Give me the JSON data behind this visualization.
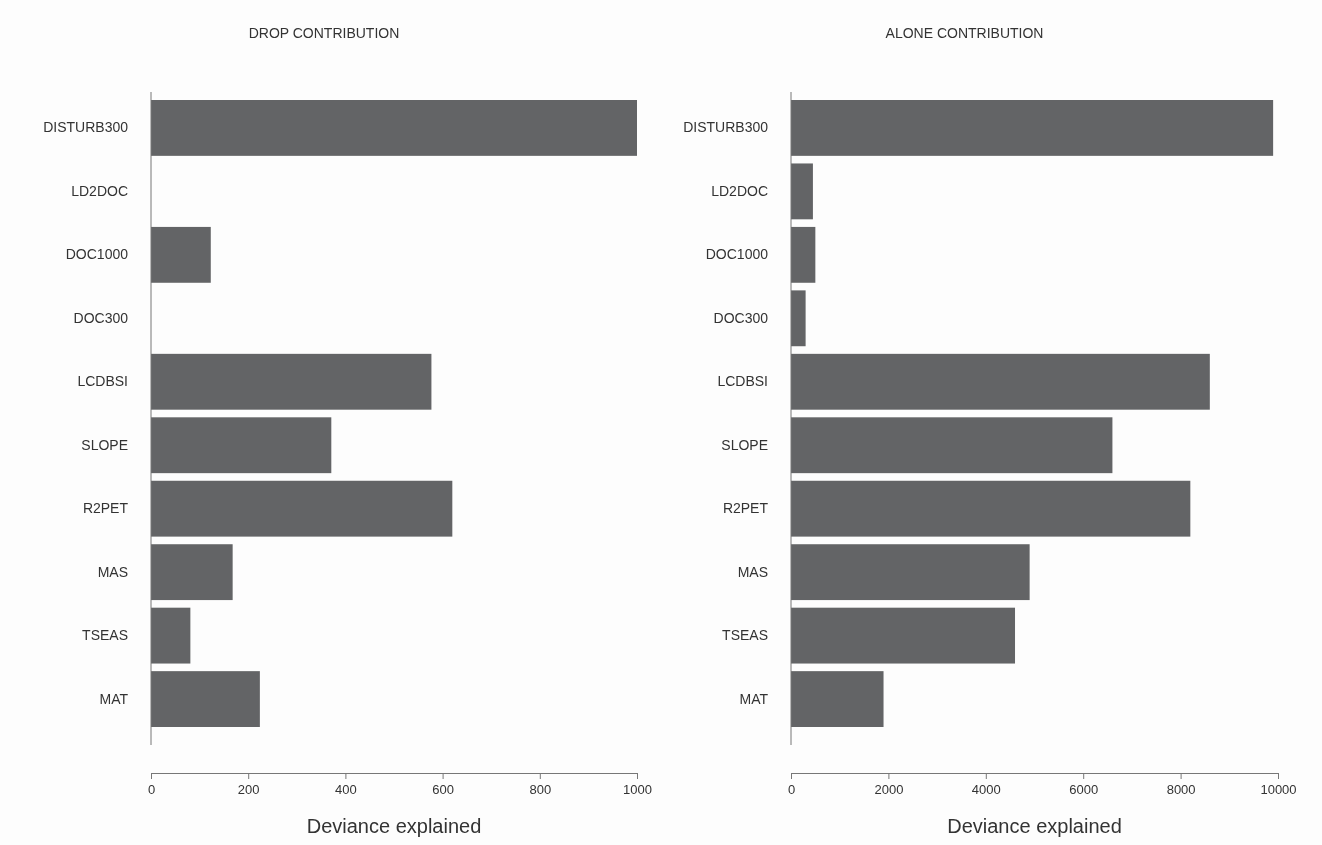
{
  "chart_data": [
    {
      "type": "bar",
      "orientation": "horizontal",
      "title": "DROP CONTRIBUTION",
      "xlabel": "Deviance explained",
      "categories": [
        "DISTURB300",
        "LD2DOC",
        "DOC1000",
        "DOC300",
        "LCDBSI",
        "SLOPE",
        "R2PET",
        "MAS",
        "TSEAS",
        "MAT"
      ],
      "values": [
        1000,
        0,
        123,
        0,
        577,
        371,
        620,
        168,
        81,
        224
      ],
      "color": "#636466",
      "xlim": [
        0,
        1000
      ],
      "xticks": [
        0,
        200,
        400,
        600,
        800,
        1000
      ],
      "grid": false
    },
    {
      "type": "bar",
      "orientation": "horizontal",
      "title": "ALONE CONTRIBUTION",
      "xlabel": "Deviance explained",
      "categories": [
        "DISTURB300",
        "LD2DOC",
        "DOC1000",
        "DOC300",
        "LCDBSI",
        "SLOPE",
        "R2PET",
        "MAS",
        "TSEAS",
        "MAT"
      ],
      "values": [
        9900,
        450,
        500,
        300,
        8600,
        6600,
        8200,
        4900,
        4600,
        1900
      ],
      "color": "#636466",
      "xlim": [
        0,
        10000
      ],
      "xticks": [
        0,
        2000,
        4000,
        6000,
        8000,
        10000
      ],
      "grid": false
    }
  ]
}
